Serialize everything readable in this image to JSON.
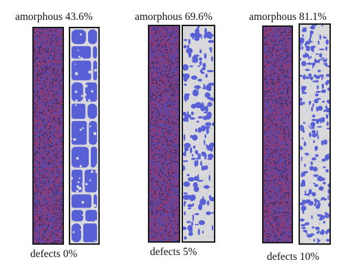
{
  "panels": [
    {
      "amorphous_label": "amorphous 43.6%",
      "defects_label": "defects 0%",
      "amorphous_percent": 43.6,
      "defects_percent": 0,
      "pattern": "cells"
    },
    {
      "amorphous_label": "amorphous 69.6%",
      "defects_label": "defects 5%",
      "amorphous_percent": 69.6,
      "defects_percent": 5,
      "pattern": "patches"
    },
    {
      "amorphous_label": "amorphous 81.1%",
      "defects_label": "defects 10%",
      "amorphous_percent": 81.1,
      "defects_percent": 10,
      "pattern": "speckles"
    }
  ],
  "colors": {
    "atomistic_base": "#6b3f8c",
    "atomistic_red": "#c0395a",
    "atomistic_blue": "#4a57c8",
    "crystal_blue": "#5860d6",
    "amorphous_gray": "#d9d9dc",
    "frame": "#1a1a1a"
  }
}
